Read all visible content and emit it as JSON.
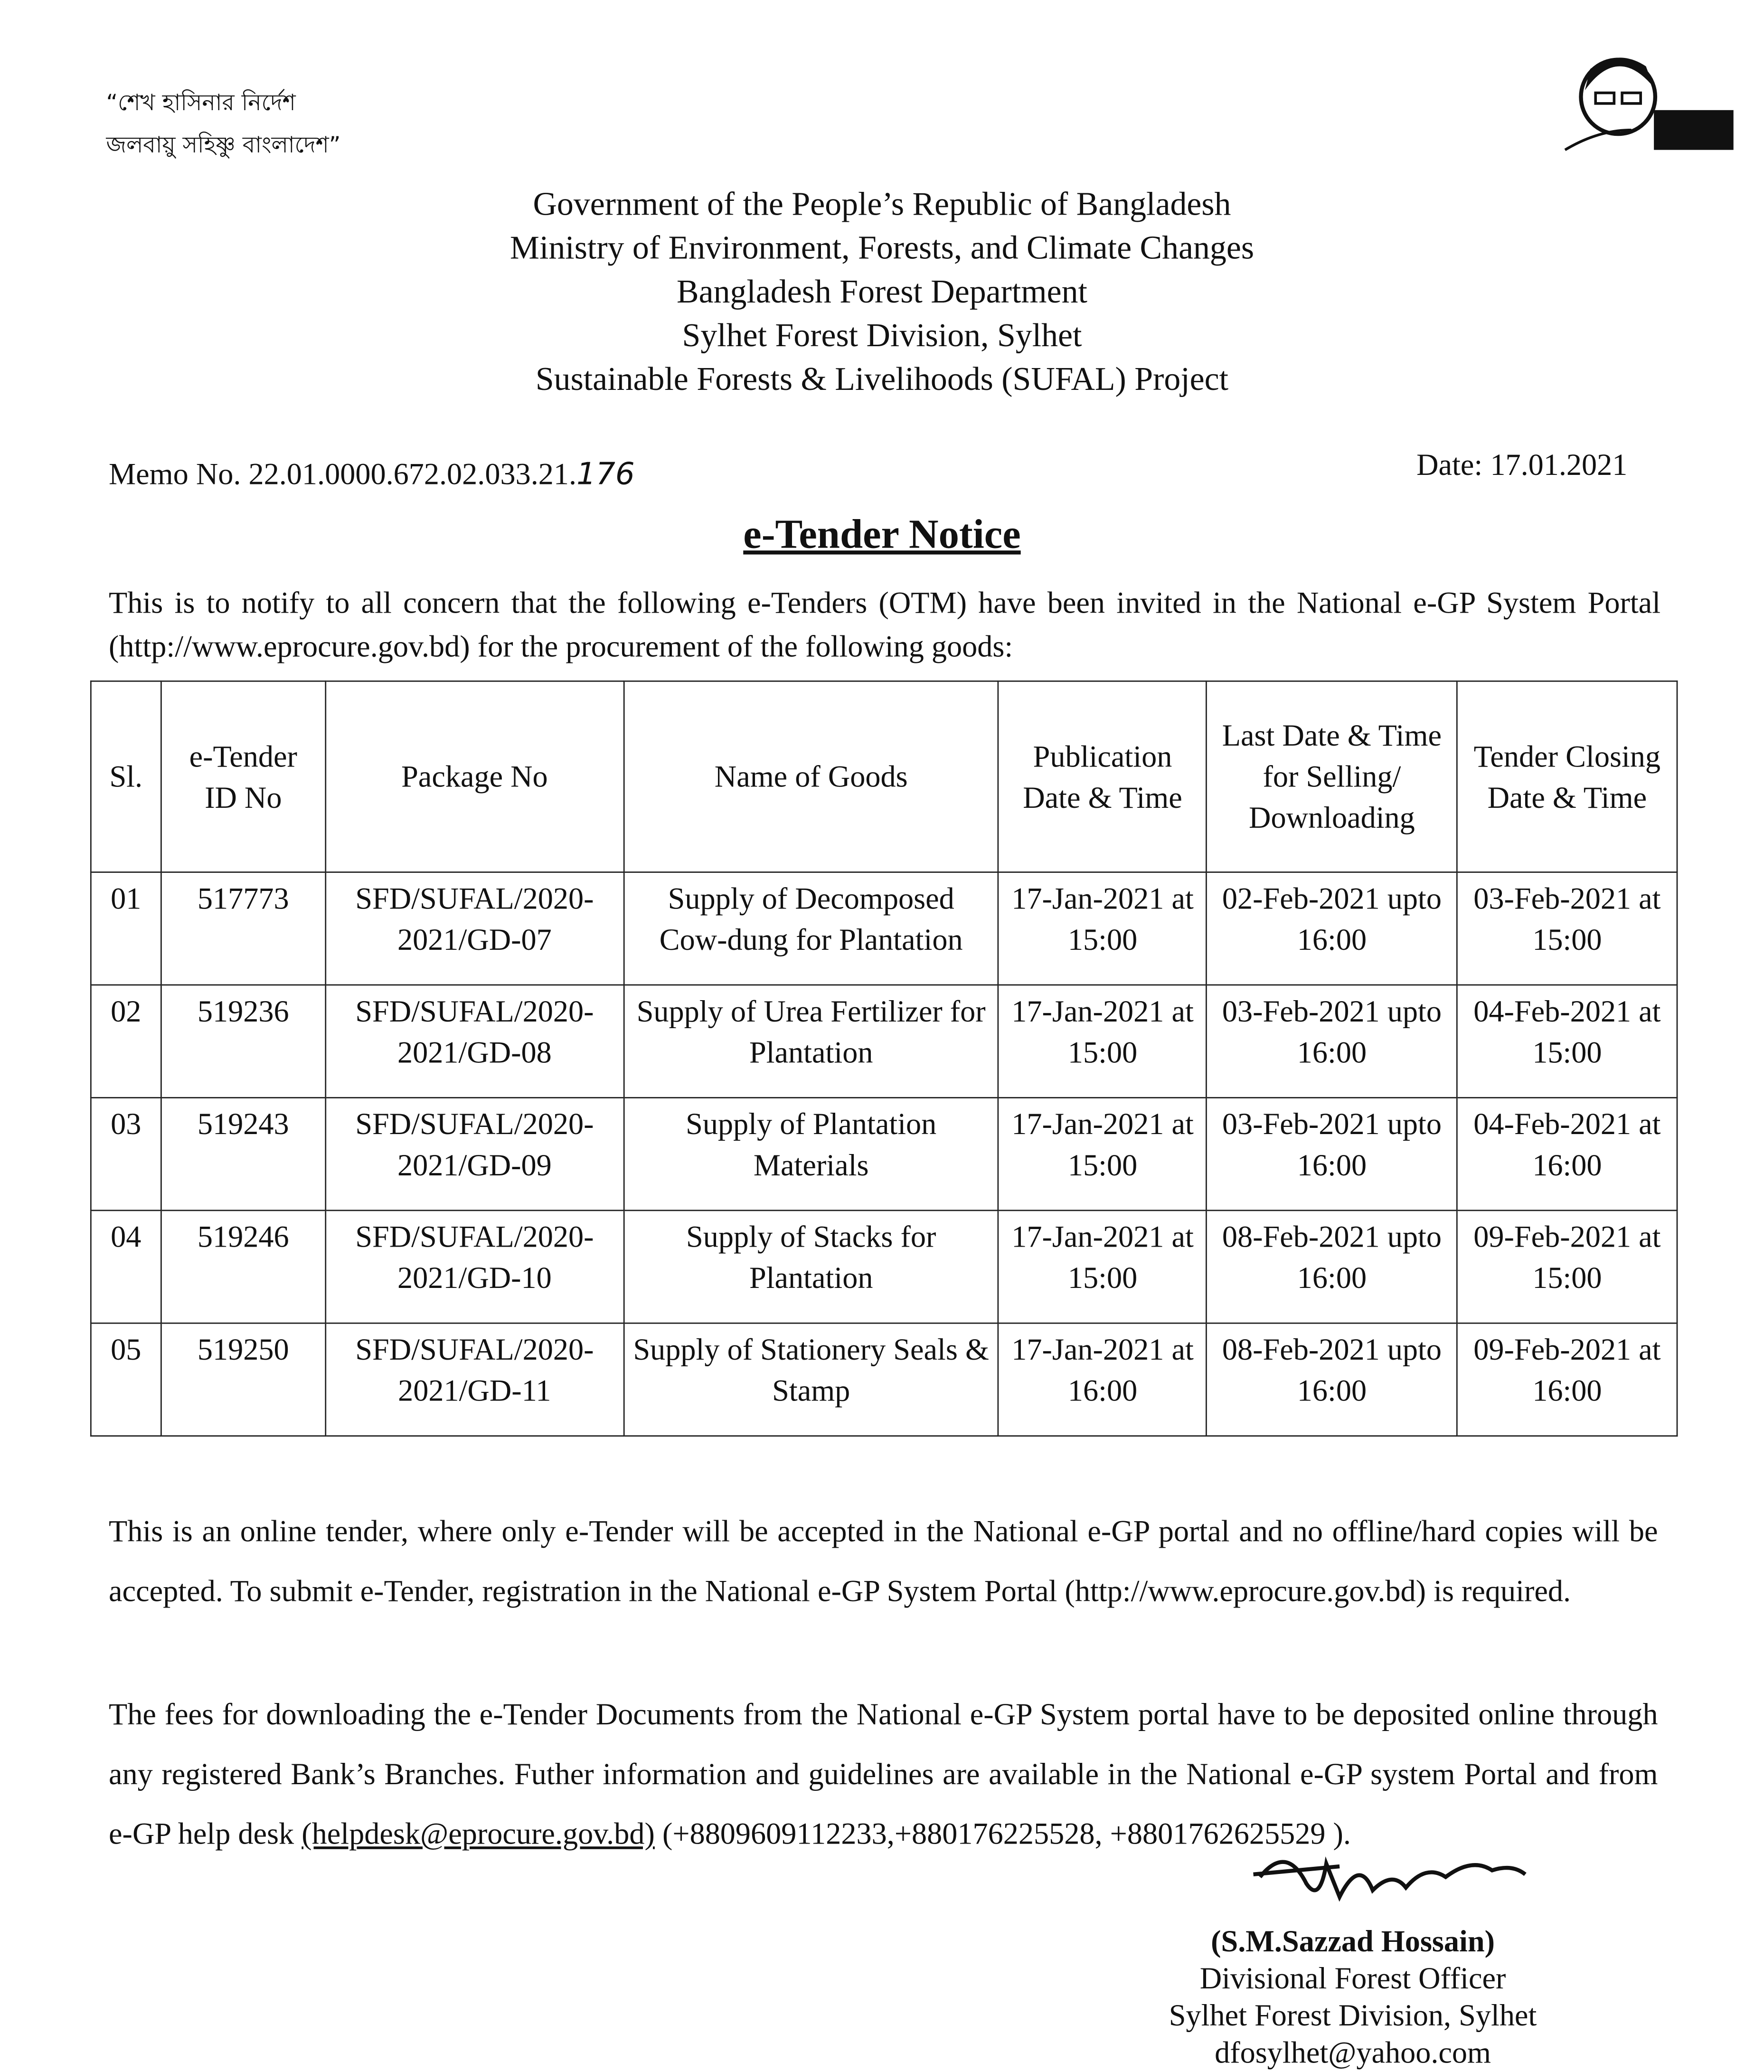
{
  "header": {
    "slogan": [
      "“শেখ হাসিনার নির্দেশ",
      "জলবায়ু সহিষ্ণু বাংলাদেশ”"
    ],
    "lines": [
      "Government of the People’s Republic of Bangladesh",
      "Ministry of Environment, Forests, and Climate Changes",
      "Bangladesh Forest Department",
      "Sylhet Forest Division, Sylhet",
      "Sustainable Forests & Livelihoods (SUFAL) Project"
    ]
  },
  "memo": {
    "prefix": "Memo No. 22.01.0000.672.02.033.21.",
    "number": "176"
  },
  "date": "Date: 17.01.2021",
  "title": "e-Tender Notice",
  "intro": "This is to notify to all concern that the following e-Tenders (OTM) have been invited in the National e-GP System Portal (http://www.eprocure.gov.bd) for the procurement of the following goods:",
  "table": {
    "headers": [
      "Sl.",
      "e-Tender ID No",
      "Package No",
      "Name of Goods",
      "Publication Date & Time",
      "Last Date & Time for Selling/ Downloading",
      "Tender Closing Date & Time"
    ],
    "rows": [
      [
        "01",
        "517773",
        "SFD/SUFAL/2020-2021/GD-07",
        "Supply of Decomposed Cow-dung for Plantation",
        "17-Jan-2021 at 15:00",
        "02-Feb-2021 upto 16:00",
        "03-Feb-2021 at 15:00"
      ],
      [
        "02",
        "519236",
        "SFD/SUFAL/2020-2021/GD-08",
        "Supply of Urea Fertilizer for Plantation",
        "17-Jan-2021 at 15:00",
        "03-Feb-2021 upto 16:00",
        "04-Feb-2021 at 15:00"
      ],
      [
        "03",
        "519243",
        "SFD/SUFAL/2020-2021/GD-09",
        "Supply of Plantation Materials",
        "17-Jan-2021 at 15:00",
        "03-Feb-2021 upto 16:00",
        "04-Feb-2021 at 16:00"
      ],
      [
        "04",
        "519246",
        "SFD/SUFAL/2020-2021/GD-10",
        "Supply of Stacks for Plantation",
        "17-Jan-2021 at 15:00",
        "08-Feb-2021 upto 16:00",
        "09-Feb-2021 at 15:00"
      ],
      [
        "05",
        "519250",
        "SFD/SUFAL/2020-2021/GD-11",
        "Supply of Stationery Seals & Stamp",
        "17-Jan-2021 at 16:00",
        "08-Feb-2021 upto 16:00",
        "09-Feb-2021 at 16:00"
      ]
    ]
  },
  "paragraphs": {
    "p1": "This is an online tender, where only e-Tender will be accepted in the National e-GP portal and no offline/hard copies will be accepted. To submit e-Tender, registration in the National e-GP System Portal (http://www.eprocure.gov.bd) is required.",
    "p2_start": "The fees for downloading the e-Tender Documents from the National e-GP System portal have to be deposited online through any registered Bank’s Branches. Futher information and guidelines are available in the National e-GP system Portal and from e-GP help desk ",
    "p2_email": "(helpdesk@eprocure.gov.bd)",
    "p2_end": " (+8809609112233,+880176225528, +8801762625529 )."
  },
  "signature": {
    "name": "(S.M.Sazzad Hossain)",
    "lines": [
      "Divisional Forest Officer",
      "Sylhet Forest Division, Sylhet",
      "dfosylhet@yahoo.com"
    ]
  }
}
